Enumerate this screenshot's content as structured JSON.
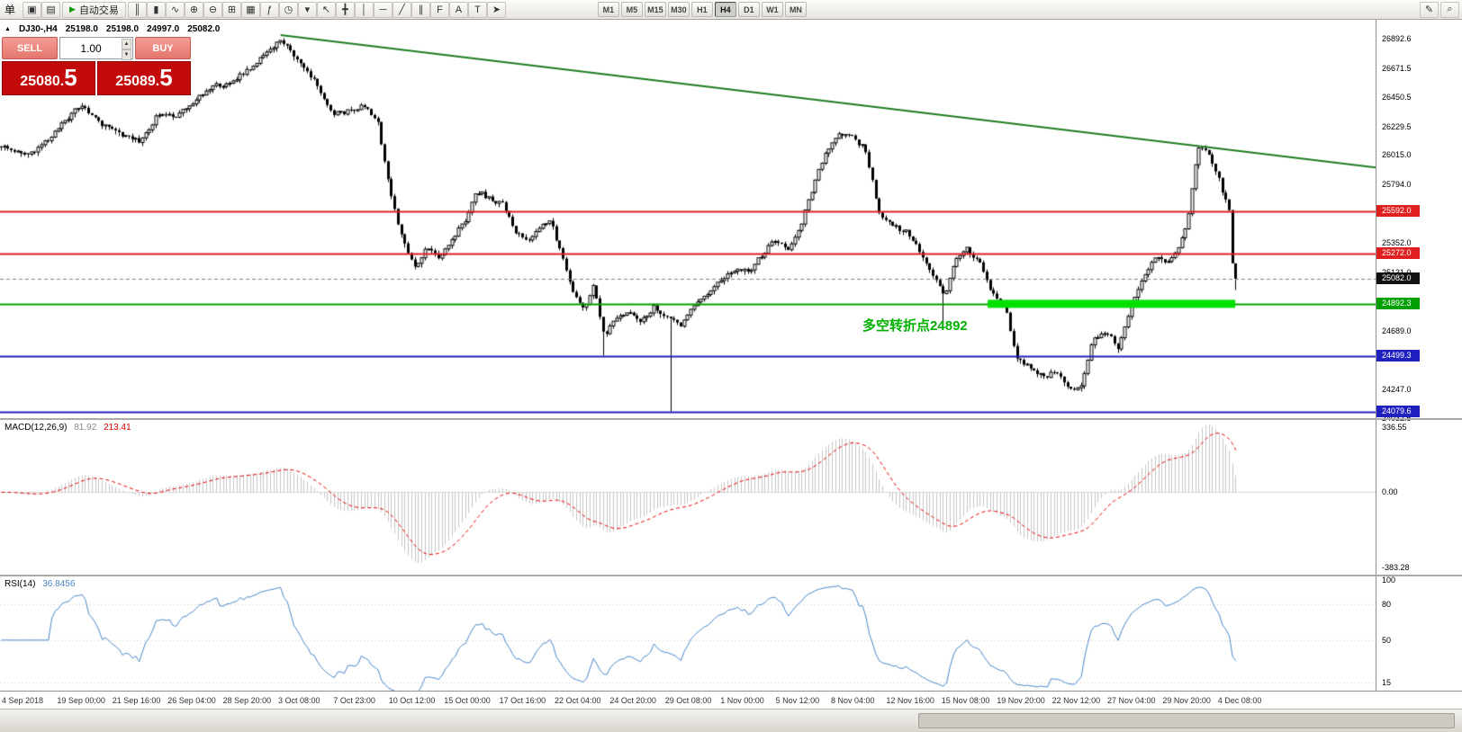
{
  "toolbar": {
    "menu_label": "单",
    "autotrade_label": "自动交易",
    "icons_pre": [
      {
        "name": "new-order-icon",
        "glyph": "▣"
      },
      {
        "name": "chart-windows-icon",
        "glyph": "▤"
      }
    ],
    "icons_left": [
      {
        "name": "bar-chart-icon",
        "glyph": "║"
      },
      {
        "name": "candlestick-chart-icon",
        "glyph": "▮"
      },
      {
        "name": "line-chart-icon",
        "glyph": "∿"
      },
      {
        "name": "zoom-in-icon",
        "glyph": "⊕"
      },
      {
        "name": "zoom-out-icon",
        "glyph": "⊖"
      },
      {
        "name": "grid-icon",
        "glyph": "⊞"
      },
      {
        "name": "tile-windows-icon",
        "glyph": "▦"
      },
      {
        "name": "indicators-icon",
        "glyph": "ƒ"
      },
      {
        "name": "periods-icon",
        "glyph": "◷"
      },
      {
        "name": "templates-icon",
        "glyph": "▾"
      },
      {
        "name": "cursor-icon",
        "glyph": "↖"
      },
      {
        "name": "crosshair-icon",
        "glyph": "╋"
      },
      {
        "name": "vertical-line-icon",
        "glyph": "│"
      },
      {
        "name": "horizontal-line-icon",
        "glyph": "─"
      },
      {
        "name": "trendline-icon",
        "glyph": "╱"
      },
      {
        "name": "channel-icon",
        "glyph": "∥"
      },
      {
        "name": "fibonacci-icon",
        "glyph": "F"
      },
      {
        "name": "text-icon",
        "glyph": "A"
      },
      {
        "name": "text-label-icon",
        "glyph": "T"
      },
      {
        "name": "arrow-tool-icon",
        "glyph": "➤"
      }
    ],
    "timeframes": [
      "M1",
      "M5",
      "M15",
      "M30",
      "H1",
      "H4",
      "D1",
      "W1",
      "MN"
    ],
    "active_timeframe": "H4",
    "icons_right": [
      {
        "name": "edit-icon",
        "glyph": "✎"
      },
      {
        "name": "search-icon",
        "glyph": "⌕"
      }
    ]
  },
  "chart_header": {
    "symbol": "DJ30-,H4",
    "open": "25198.0",
    "high": "25198.0",
    "low": "24997.0",
    "close": "25082.0"
  },
  "trade_panel": {
    "sell_label": "SELL",
    "buy_label": "BUY",
    "volume": "1.00",
    "sell_price_main": "25080.",
    "sell_price_big": "5",
    "buy_price_main": "25089.",
    "buy_price_big": "5"
  },
  "chart_data": {
    "type": "candlestick",
    "symbol": "DJ30-",
    "timeframe": "H4",
    "title": "DJ30- H4 with MACD(12,26,9) and RSI(14)",
    "ohlc_current": {
      "open": 25198.0,
      "high": 25198.0,
      "low": 24997.0,
      "close": 25082.0
    },
    "current_price": 25082.0,
    "price_min": 24030,
    "price_max": 27035,
    "num_candles": 368,
    "candle_area_frac": 0.9,
    "noise_seed": 1357,
    "body_noise": 34,
    "wick_noise": 26,
    "waypoints": [
      [
        0.0,
        26080
      ],
      [
        0.022,
        26010
      ],
      [
        0.04,
        26150
      ],
      [
        0.055,
        26300
      ],
      [
        0.065,
        26400
      ],
      [
        0.08,
        26250
      ],
      [
        0.095,
        26180
      ],
      [
        0.113,
        26120
      ],
      [
        0.127,
        26320
      ],
      [
        0.142,
        26300
      ],
      [
        0.156,
        26420
      ],
      [
        0.171,
        26530
      ],
      [
        0.185,
        26560
      ],
      [
        0.2,
        26660
      ],
      [
        0.215,
        26780
      ],
      [
        0.227,
        26890
      ],
      [
        0.24,
        26720
      ],
      [
        0.255,
        26560
      ],
      [
        0.268,
        26320
      ],
      [
        0.28,
        26340
      ],
      [
        0.295,
        26390
      ],
      [
        0.305,
        26260
      ],
      [
        0.314,
        25800
      ],
      [
        0.32,
        25540
      ],
      [
        0.329,
        25300
      ],
      [
        0.336,
        25160
      ],
      [
        0.345,
        25330
      ],
      [
        0.355,
        25230
      ],
      [
        0.365,
        25380
      ],
      [
        0.377,
        25540
      ],
      [
        0.385,
        25750
      ],
      [
        0.396,
        25680
      ],
      [
        0.406,
        25650
      ],
      [
        0.416,
        25440
      ],
      [
        0.428,
        25370
      ],
      [
        0.436,
        25470
      ],
      [
        0.445,
        25520
      ],
      [
        0.455,
        25230
      ],
      [
        0.464,
        24970
      ],
      [
        0.473,
        24860
      ],
      [
        0.48,
        25030
      ],
      [
        0.489,
        24620
      ],
      [
        0.497,
        24790
      ],
      [
        0.509,
        24830
      ],
      [
        0.519,
        24760
      ],
      [
        0.529,
        24870
      ],
      [
        0.541,
        24780
      ],
      [
        0.551,
        24720
      ],
      [
        0.561,
        24890
      ],
      [
        0.573,
        24960
      ],
      [
        0.583,
        25080
      ],
      [
        0.595,
        25160
      ],
      [
        0.605,
        25130
      ],
      [
        0.617,
        25270
      ],
      [
        0.627,
        25380
      ],
      [
        0.638,
        25300
      ],
      [
        0.649,
        25520
      ],
      [
        0.659,
        25820
      ],
      [
        0.668,
        26040
      ],
      [
        0.678,
        26180
      ],
      [
        0.689,
        26150
      ],
      [
        0.7,
        26060
      ],
      [
        0.711,
        25580
      ],
      [
        0.721,
        25480
      ],
      [
        0.733,
        25440
      ],
      [
        0.743,
        25310
      ],
      [
        0.755,
        25100
      ],
      [
        0.764,
        24950
      ],
      [
        0.773,
        25230
      ],
      [
        0.782,
        25310
      ],
      [
        0.793,
        25200
      ],
      [
        0.803,
        24960
      ],
      [
        0.813,
        24890
      ],
      [
        0.822,
        24480
      ],
      [
        0.833,
        24420
      ],
      [
        0.844,
        24340
      ],
      [
        0.855,
        24380
      ],
      [
        0.865,
        24270
      ],
      [
        0.874,
        24250
      ],
      [
        0.884,
        24620
      ],
      [
        0.895,
        24690
      ],
      [
        0.905,
        24560
      ],
      [
        0.915,
        24860
      ],
      [
        0.925,
        25100
      ],
      [
        0.935,
        25240
      ],
      [
        0.945,
        25210
      ],
      [
        0.954,
        25310
      ],
      [
        0.961,
        25500
      ],
      [
        0.969,
        26050
      ],
      [
        0.975,
        26080
      ],
      [
        0.98,
        25960
      ],
      [
        0.986,
        25840
      ],
      [
        0.992,
        25660
      ],
      [
        0.996,
        25560
      ],
      [
        1.0,
        25082
      ]
    ],
    "spikes": [
      [
        0.541,
        24085
      ],
      [
        0.489,
        24505
      ],
      [
        0.764,
        24740
      ]
    ],
    "trendline": {
      "x1_frac": 0.204,
      "price1": 26920,
      "x2_frac": 1.0,
      "price2": 25920,
      "color": "#1e7d1e"
    },
    "hlines": [
      {
        "price": 25592.0,
        "label": "25592.0",
        "color": "#e02020"
      },
      {
        "price": 25272.0,
        "label": "25272.0",
        "color": "#e02020"
      },
      {
        "price": 24892.3,
        "label": "24892.3",
        "color": "#00a000"
      },
      {
        "price": 24499.3,
        "label": "24499.3",
        "color": "#2020c0"
      },
      {
        "price": 24079.6,
        "label": "24079.6",
        "color": "#2020c0"
      }
    ],
    "highlight": {
      "x1_frac": 0.718,
      "x2_frac": 0.898,
      "price": 24892.3,
      "color": "#00e000",
      "thickness": 9
    },
    "annotation": {
      "text": "多空转折点24892",
      "x_frac": 0.627,
      "price": 24800,
      "color": "#00b000"
    },
    "y_axis_labels": [
      26892.6,
      26671.5,
      26450.5,
      26229.5,
      26015.0,
      25794.0,
      25352.0,
      25131.0,
      24689.0,
      24247.0,
      24032.5
    ],
    "x_axis_labels": [
      "4 Sep 2018",
      "19 Sep 00:00",
      "21 Sep 16:00",
      "26 Sep 04:00",
      "28 Sep 20:00",
      "3 Oct 08:00",
      "7 Oct 23:00",
      "10 Oct 12:00",
      "15 Oct 00:00",
      "17 Oct 16:00",
      "22 Oct 04:00",
      "24 Oct 20:00",
      "29 Oct 08:00",
      "1 Nov 00:00",
      "5 Nov 12:00",
      "8 Nov 04:00",
      "12 Nov 16:00",
      "15 Nov 08:00",
      "19 Nov 20:00",
      "22 Nov 12:00",
      "27 Nov 04:00",
      "29 Nov 20:00",
      "4 Dec 08:00"
    ],
    "macd": {
      "label": "MACD(12,26,9)",
      "value_macd": "81.92",
      "value_signal": "213.41",
      "fast": 12,
      "slow": 26,
      "signal": 9,
      "max": 336.55,
      "min": -383.28,
      "axis_labels": [
        "336.55",
        "0.00",
        "-383.28"
      ],
      "hist_color": "#c4c4c4",
      "signal_color": "#e60000"
    },
    "rsi": {
      "label": "RSI(14)",
      "value": "36.8456",
      "period": 14,
      "range_min": 8,
      "range_max": 103,
      "levels": [
        100,
        80,
        50,
        15
      ],
      "line_color": "#4a86c8"
    }
  }
}
